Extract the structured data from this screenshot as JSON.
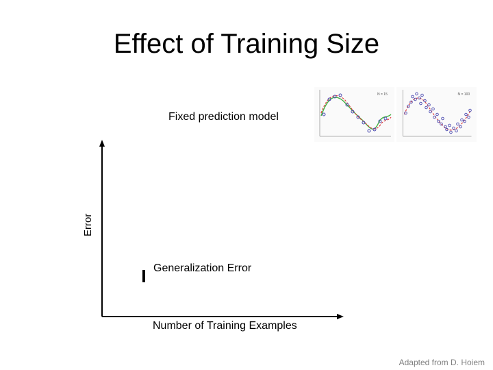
{
  "slide": {
    "title": "Effect of Training Size",
    "subtitle": "Fixed prediction model",
    "y_axis_label": "Error",
    "x_axis_label": "Number of Training Examples",
    "curve_label": "Generalization Error",
    "credit": "Adapted from D. Hoiem"
  },
  "thumbnails": [
    {
      "n_label": "N = 15",
      "icon": "polynomial-fit-plot-icon"
    },
    {
      "n_label": "N = 100",
      "icon": "polynomial-fit-plot-icon"
    }
  ],
  "colors": {
    "points": "#4a4ab0",
    "fit_red": "#e04040",
    "fit_green": "#40b040",
    "credit": "#7f7f7f"
  }
}
